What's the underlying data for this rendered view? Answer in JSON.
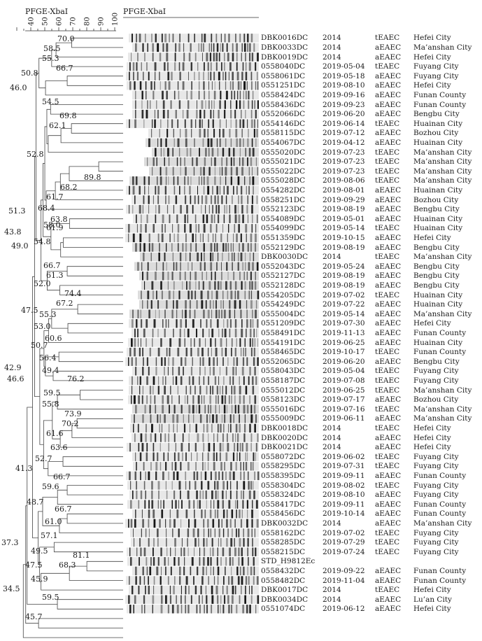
{
  "header": {
    "dendro_title": "PFGE-XbaI",
    "gel_title": "PFGE-XbaI",
    "scale_ticks": [
      "40",
      "50",
      "60",
      "70",
      "80",
      "90",
      "100"
    ]
  },
  "rows": [
    {
      "id": "DBK0016DC",
      "date": "2014",
      "type": "tEAEC",
      "city": "Hefei City"
    },
    {
      "id": "DBK0033DC",
      "date": "2014",
      "type": "aEAEC",
      "city": "Ma’anshan City"
    },
    {
      "id": "DBK0019DC",
      "date": "2014",
      "type": "aEAEC",
      "city": "Hefei City"
    },
    {
      "id": "0558040DC",
      "date": "2019-05-04",
      "type": "tEAEC",
      "city": "Fuyang City"
    },
    {
      "id": "0558061DC",
      "date": "2019-05-18",
      "type": "aEAEC",
      "city": "Fuyang City"
    },
    {
      "id": "0551251DC",
      "date": "2019-08-10",
      "type": "aEAEC",
      "city": "Hefei City"
    },
    {
      "id": "0558424DC",
      "date": "2019-09-16",
      "type": "aEAEC",
      "city": "Funan County"
    },
    {
      "id": "0558436DC",
      "date": "2019-09-23",
      "type": "aEAEC",
      "city": "Funan County"
    },
    {
      "id": "0552066DC",
      "date": "2019-06-20",
      "type": "aEAEC",
      "city": "Bengbu City"
    },
    {
      "id": "0554146DC",
      "date": "2019-06-14",
      "type": "tEAEC",
      "city": "Huainan City"
    },
    {
      "id": "0558115DC",
      "date": "2019-07-12",
      "type": "aEAEC",
      "city": "Bozhou City"
    },
    {
      "id": "0554067DC",
      "date": "2019-04-12",
      "type": "aEAEC",
      "city": "Huainan City"
    },
    {
      "id": "0555020DC",
      "date": "2019-07-23",
      "type": "tEAEC",
      "city": "Ma’anshan City"
    },
    {
      "id": "0555021DC",
      "date": "2019-07-23",
      "type": "tEAEC",
      "city": "Ma’anshan City"
    },
    {
      "id": "0555022DC",
      "date": "2019-07-23",
      "type": "tEAEC",
      "city": "Ma’anshan City"
    },
    {
      "id": "0555028DC",
      "date": "2019-08-06",
      "type": "tEAEC",
      "city": "Ma’anshan City"
    },
    {
      "id": "0554282DC",
      "date": "2019-08-01",
      "type": "aEAEC",
      "city": "Huainan City"
    },
    {
      "id": "0558251DC",
      "date": "2019-09-29",
      "type": "aEAEC",
      "city": "Bozhou City"
    },
    {
      "id": "0552123DC",
      "date": "2019-08-19",
      "type": "aEAEC",
      "city": "Bengbu City"
    },
    {
      "id": "0554089DC",
      "date": "2019-05-01",
      "type": "aEAEC",
      "city": "Huainan City"
    },
    {
      "id": "0554099DC",
      "date": "2019-05-14",
      "type": "tEAEC",
      "city": "Huainan City"
    },
    {
      "id": "0551359DC",
      "date": "2019-10-15",
      "type": "aEAEC",
      "city": "Hefei City"
    },
    {
      "id": "0552129DC",
      "date": "2019-08-19",
      "type": "aEAEC",
      "city": "Bengbu City"
    },
    {
      "id": "DBK0030DC",
      "date": "2014",
      "type": "tEAEC",
      "city": "Ma’anshan City"
    },
    {
      "id": "0552043DC",
      "date": "2019-05-24",
      "type": "aEAEC",
      "city": "Bengbu City"
    },
    {
      "id": "0552127DC",
      "date": "2019-08-19",
      "type": "aEAEC",
      "city": "Bengbu City"
    },
    {
      "id": "0552128DC",
      "date": "2019-08-19",
      "type": "aEAEC",
      "city": "Bengbu City"
    },
    {
      "id": "0554205DC",
      "date": "2019-07-02",
      "type": "tEAEC",
      "city": "Huainan City"
    },
    {
      "id": "0554249DC",
      "date": "2019-07-22",
      "type": "aEAEC",
      "city": "Huainan City"
    },
    {
      "id": "0555004DC",
      "date": "2019-05-14",
      "type": "aEAEC",
      "city": "Ma’anshan City"
    },
    {
      "id": "0551209DC",
      "date": "2019-07-30",
      "type": "aEAEC",
      "city": "Hefei City"
    },
    {
      "id": "0558491DC",
      "date": "2019-11-13",
      "type": "aEAEC",
      "city": "Funan County"
    },
    {
      "id": "0554191DC",
      "date": "2019-06-25",
      "type": "aEAEC",
      "city": "Huainan City"
    },
    {
      "id": "0558465DC",
      "date": "2019-10-17",
      "type": "tEAEC",
      "city": "Funan County"
    },
    {
      "id": "0552065DC",
      "date": "2019-06-20",
      "type": "aEAEC",
      "city": "Bengbu City"
    },
    {
      "id": "0558043DC",
      "date": "2019-05-04",
      "type": "tEAEC",
      "city": "Fuyang City"
    },
    {
      "id": "0558187DC",
      "date": "2019-07-08",
      "type": "tEAEC",
      "city": "Fuyang City"
    },
    {
      "id": "0555012DC",
      "date": "2019-06-25",
      "type": "tEAEC",
      "city": "Ma’anshan City"
    },
    {
      "id": "0558123DC",
      "date": "2019-07-17",
      "type": "aEAEC",
      "city": "Bozhou City"
    },
    {
      "id": "0555016DC",
      "date": "2019-07-16",
      "type": "tEAEC",
      "city": "Ma’anshan City"
    },
    {
      "id": "0555009DC",
      "date": "2019-06-11",
      "type": "aEAEC",
      "city": "Ma’anshan City"
    },
    {
      "id": "DBK0018DC",
      "date": "2014",
      "type": "tEAEC",
      "city": "Hefei City"
    },
    {
      "id": "DBK0020DC",
      "date": "2014",
      "type": "aEAEC",
      "city": "Hefei City"
    },
    {
      "id": "DBK0021DC",
      "date": "2014",
      "type": "aEAEC",
      "city": "Hefei City"
    },
    {
      "id": "0558072DC",
      "date": "2019-06-02",
      "type": "tEAEC",
      "city": "Fuyang City"
    },
    {
      "id": "0558295DC",
      "date": "2019-07-31",
      "type": "tEAEC",
      "city": "Fuyang City"
    },
    {
      "id": "0558395DC",
      "date": "2019-09-11",
      "type": "aEAEC",
      "city": "Funan County"
    },
    {
      "id": "0558304DC",
      "date": "2019-08-02",
      "type": "tEAEC",
      "city": "Fuyang City"
    },
    {
      "id": "0558324DC",
      "date": "2019-08-10",
      "type": "aEAEC",
      "city": "Fuyang City"
    },
    {
      "id": "0558417DC",
      "date": "2019-09-11",
      "type": "aEAEC",
      "city": "Funan County"
    },
    {
      "id": "0558456DC",
      "date": "2019-10-14",
      "type": "aEAEC",
      "city": "Funan County"
    },
    {
      "id": "DBK0032DC",
      "date": "2014",
      "type": "aEAEC",
      "city": "Ma’anshan City"
    },
    {
      "id": "0558162DC",
      "date": "2019-07-02",
      "type": "tEAEC",
      "city": "Fuyang City"
    },
    {
      "id": "0558285DC",
      "date": "2019-07-29",
      "type": "tEAEC",
      "city": "Fuyang City"
    },
    {
      "id": "0558215DC",
      "date": "2019-07-24",
      "type": "tEAEC",
      "city": "Fuyang City"
    },
    {
      "id": "STD_H9812Ec",
      "date": "",
      "type": "",
      "city": ""
    },
    {
      "id": "0558432DC",
      "date": "2019-09-22",
      "type": "aEAEC",
      "city": "Funan County"
    },
    {
      "id": "0558482DC",
      "date": "2019-11-04",
      "type": "aEAEC",
      "city": "Funan County"
    },
    {
      "id": "DBK0017DC",
      "date": "2014",
      "type": "tEAEC",
      "city": "Hefei City"
    },
    {
      "id": "DBK0034DC",
      "date": "2014",
      "type": "aEAEC",
      "city": "Lu’an City"
    },
    {
      "id": "0551074DC",
      "date": "2019-06-12",
      "type": "aEAEC",
      "city": "Hefei City"
    }
  ],
  "node_labels": [
    {
      "v": "70.0"
    },
    {
      "v": "58.5"
    },
    {
      "v": "55.3"
    },
    {
      "v": "50.8"
    },
    {
      "v": "66.7"
    },
    {
      "v": "46.0"
    },
    {
      "v": "54.5"
    },
    {
      "v": "69.8"
    },
    {
      "v": "62.1"
    },
    {
      "v": "52.8"
    },
    {
      "v": "89.8"
    },
    {
      "v": "68.2"
    },
    {
      "v": "61.7"
    },
    {
      "v": "51.3"
    },
    {
      "v": "58.0"
    },
    {
      "v": "68.4"
    },
    {
      "v": "54.8"
    },
    {
      "v": "49.0"
    },
    {
      "v": "63.8"
    },
    {
      "v": "43.8"
    },
    {
      "v": "61.9"
    },
    {
      "v": "66.7"
    },
    {
      "v": "61.3"
    },
    {
      "v": "52.0"
    },
    {
      "v": "47.5"
    },
    {
      "v": "74.4"
    },
    {
      "v": "67.2"
    },
    {
      "v": "55.3"
    },
    {
      "v": "53.0"
    },
    {
      "v": "50.7"
    },
    {
      "v": "60.6"
    },
    {
      "v": "56.4"
    },
    {
      "v": "42.9"
    },
    {
      "v": "46.6"
    },
    {
      "v": "49.4"
    },
    {
      "v": "76.2"
    },
    {
      "v": "59.5"
    },
    {
      "v": "55.8"
    },
    {
      "v": "73.9"
    },
    {
      "v": "70.2"
    },
    {
      "v": "61.6"
    },
    {
      "v": "63.6"
    },
    {
      "v": "52.7"
    },
    {
      "v": "41.3"
    },
    {
      "v": "66.7"
    },
    {
      "v": "59.6"
    },
    {
      "v": "48.7"
    },
    {
      "v": "66.7"
    },
    {
      "v": "61.0"
    },
    {
      "v": "37.3"
    },
    {
      "v": "57.1"
    },
    {
      "v": "49.5"
    },
    {
      "v": "81.1"
    },
    {
      "v": "47.5"
    },
    {
      "v": "68.3"
    },
    {
      "v": "45.9"
    },
    {
      "v": "34.5"
    },
    {
      "v": "59.5"
    },
    {
      "v": "45.7"
    }
  ]
}
